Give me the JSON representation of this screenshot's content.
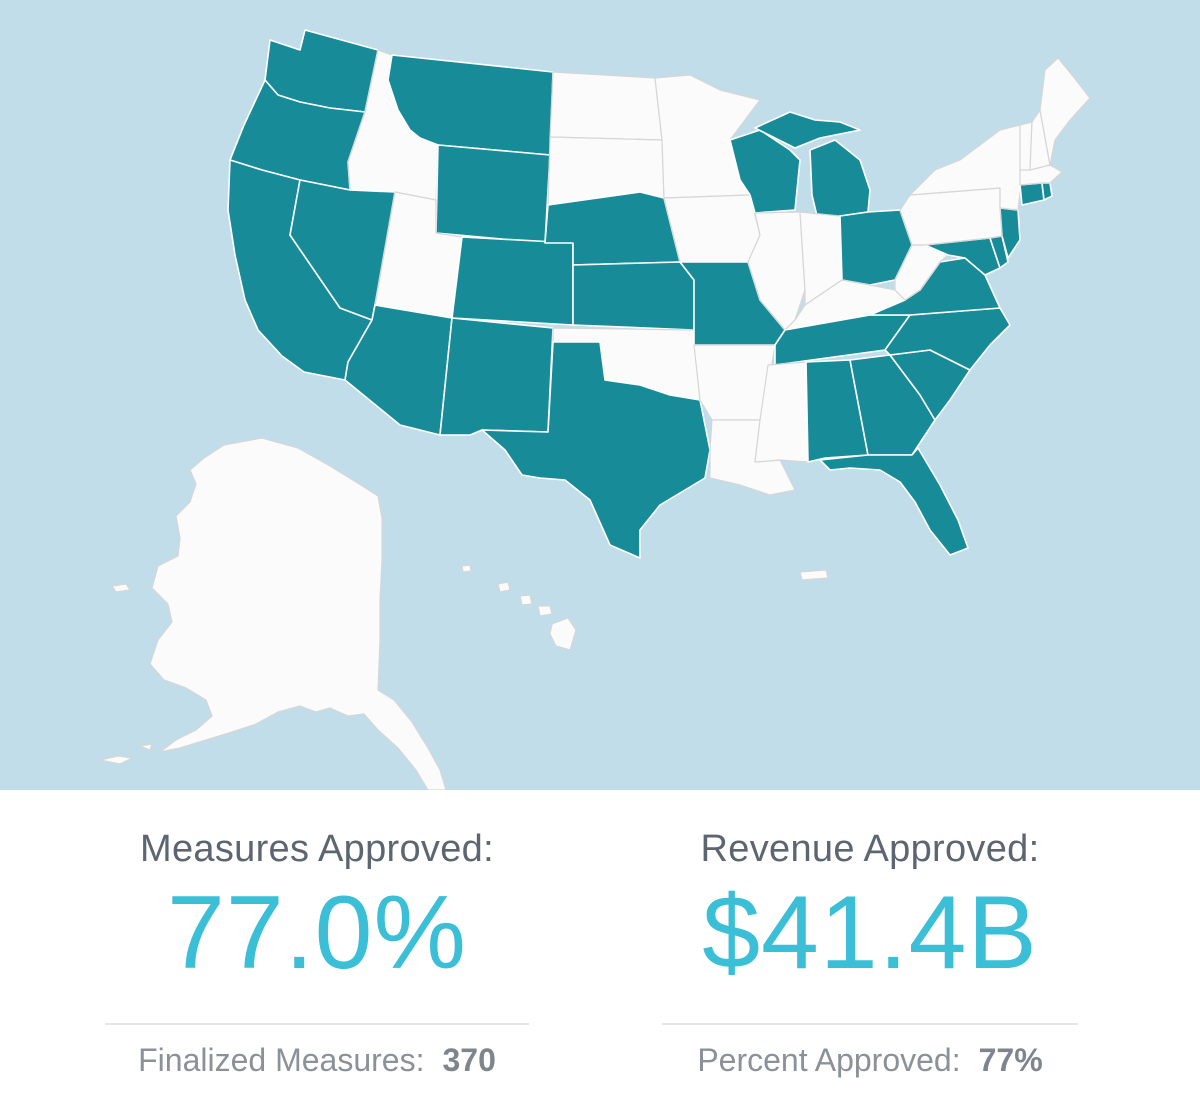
{
  "colors": {
    "ocean": "#c1dde9",
    "approved": "#178c98",
    "not_approved": "#fbfbfb",
    "accent": "#3bbfd6"
  },
  "map": {
    "approved_states": [
      "WA",
      "OR",
      "CA",
      "NV",
      "AZ",
      "NM",
      "MT",
      "WY",
      "CO",
      "NE",
      "KS",
      "TX",
      "MO",
      "WI",
      "MI",
      "OH",
      "VA",
      "MD",
      "DE",
      "NC",
      "SC",
      "GA",
      "AL",
      "FL",
      "TN",
      "CT",
      "RI",
      "NJ"
    ],
    "not_approved_states": [
      "ID",
      "UT",
      "ND",
      "SD",
      "MN",
      "IA",
      "OK",
      "AR",
      "LA",
      "MS",
      "IL",
      "IN",
      "KY",
      "WV",
      "PA",
      "NY",
      "VT",
      "NH",
      "ME",
      "MA",
      "AK",
      "HI"
    ]
  },
  "stats": {
    "measures": {
      "label": "Measures Approved:",
      "value": "77.0%",
      "footer_label": "Finalized Measures:",
      "footer_value": "370"
    },
    "revenue": {
      "label": "Revenue Approved:",
      "value": "$41.4B",
      "footer_label": "Percent Approved:",
      "footer_value": "77%"
    }
  }
}
